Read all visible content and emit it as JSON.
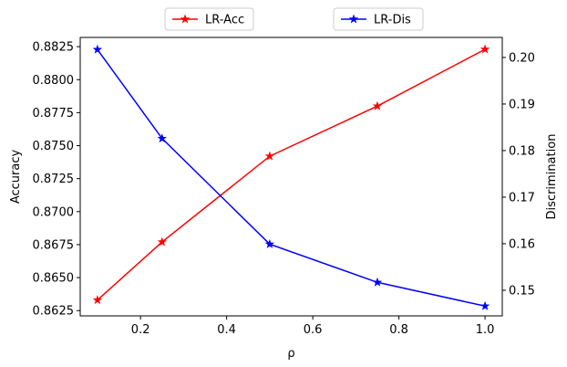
{
  "chart_data": {
    "type": "line",
    "title": "",
    "xlabel": "ρ",
    "ylabel": "Accuracy",
    "y2label": "Discrimination",
    "x": [
      0.1,
      0.25,
      0.5,
      0.75,
      1.0
    ],
    "xlim": [
      0.06,
      1.04
    ],
    "ylim": [
      0.8621,
      0.8832
    ],
    "y2lim": [
      0.1445,
      0.2043
    ],
    "xticks": [
      "0.2",
      "0.4",
      "0.6",
      "0.8",
      "1.0"
    ],
    "yticks": [
      "0.8625",
      "0.8650",
      "0.8675",
      "0.8700",
      "0.8725",
      "0.8750",
      "0.8775",
      "0.8800",
      "0.8825"
    ],
    "y2ticks": [
      "0.15",
      "0.16",
      "0.17",
      "0.18",
      "0.19",
      "0.20"
    ],
    "grid": false,
    "legend_placement": "top-center, outside",
    "series": [
      {
        "name": "LR-Acc",
        "axis": "left",
        "color": "#ff0000",
        "marker": "star",
        "values": [
          0.8633,
          0.8677,
          0.8742,
          0.878,
          0.8823
        ]
      },
      {
        "name": "LR-Dis",
        "axis": "right",
        "color": "#0000ff",
        "marker": "star",
        "values": [
          0.2017,
          0.1826,
          0.1599,
          0.1517,
          0.1466
        ]
      }
    ]
  }
}
